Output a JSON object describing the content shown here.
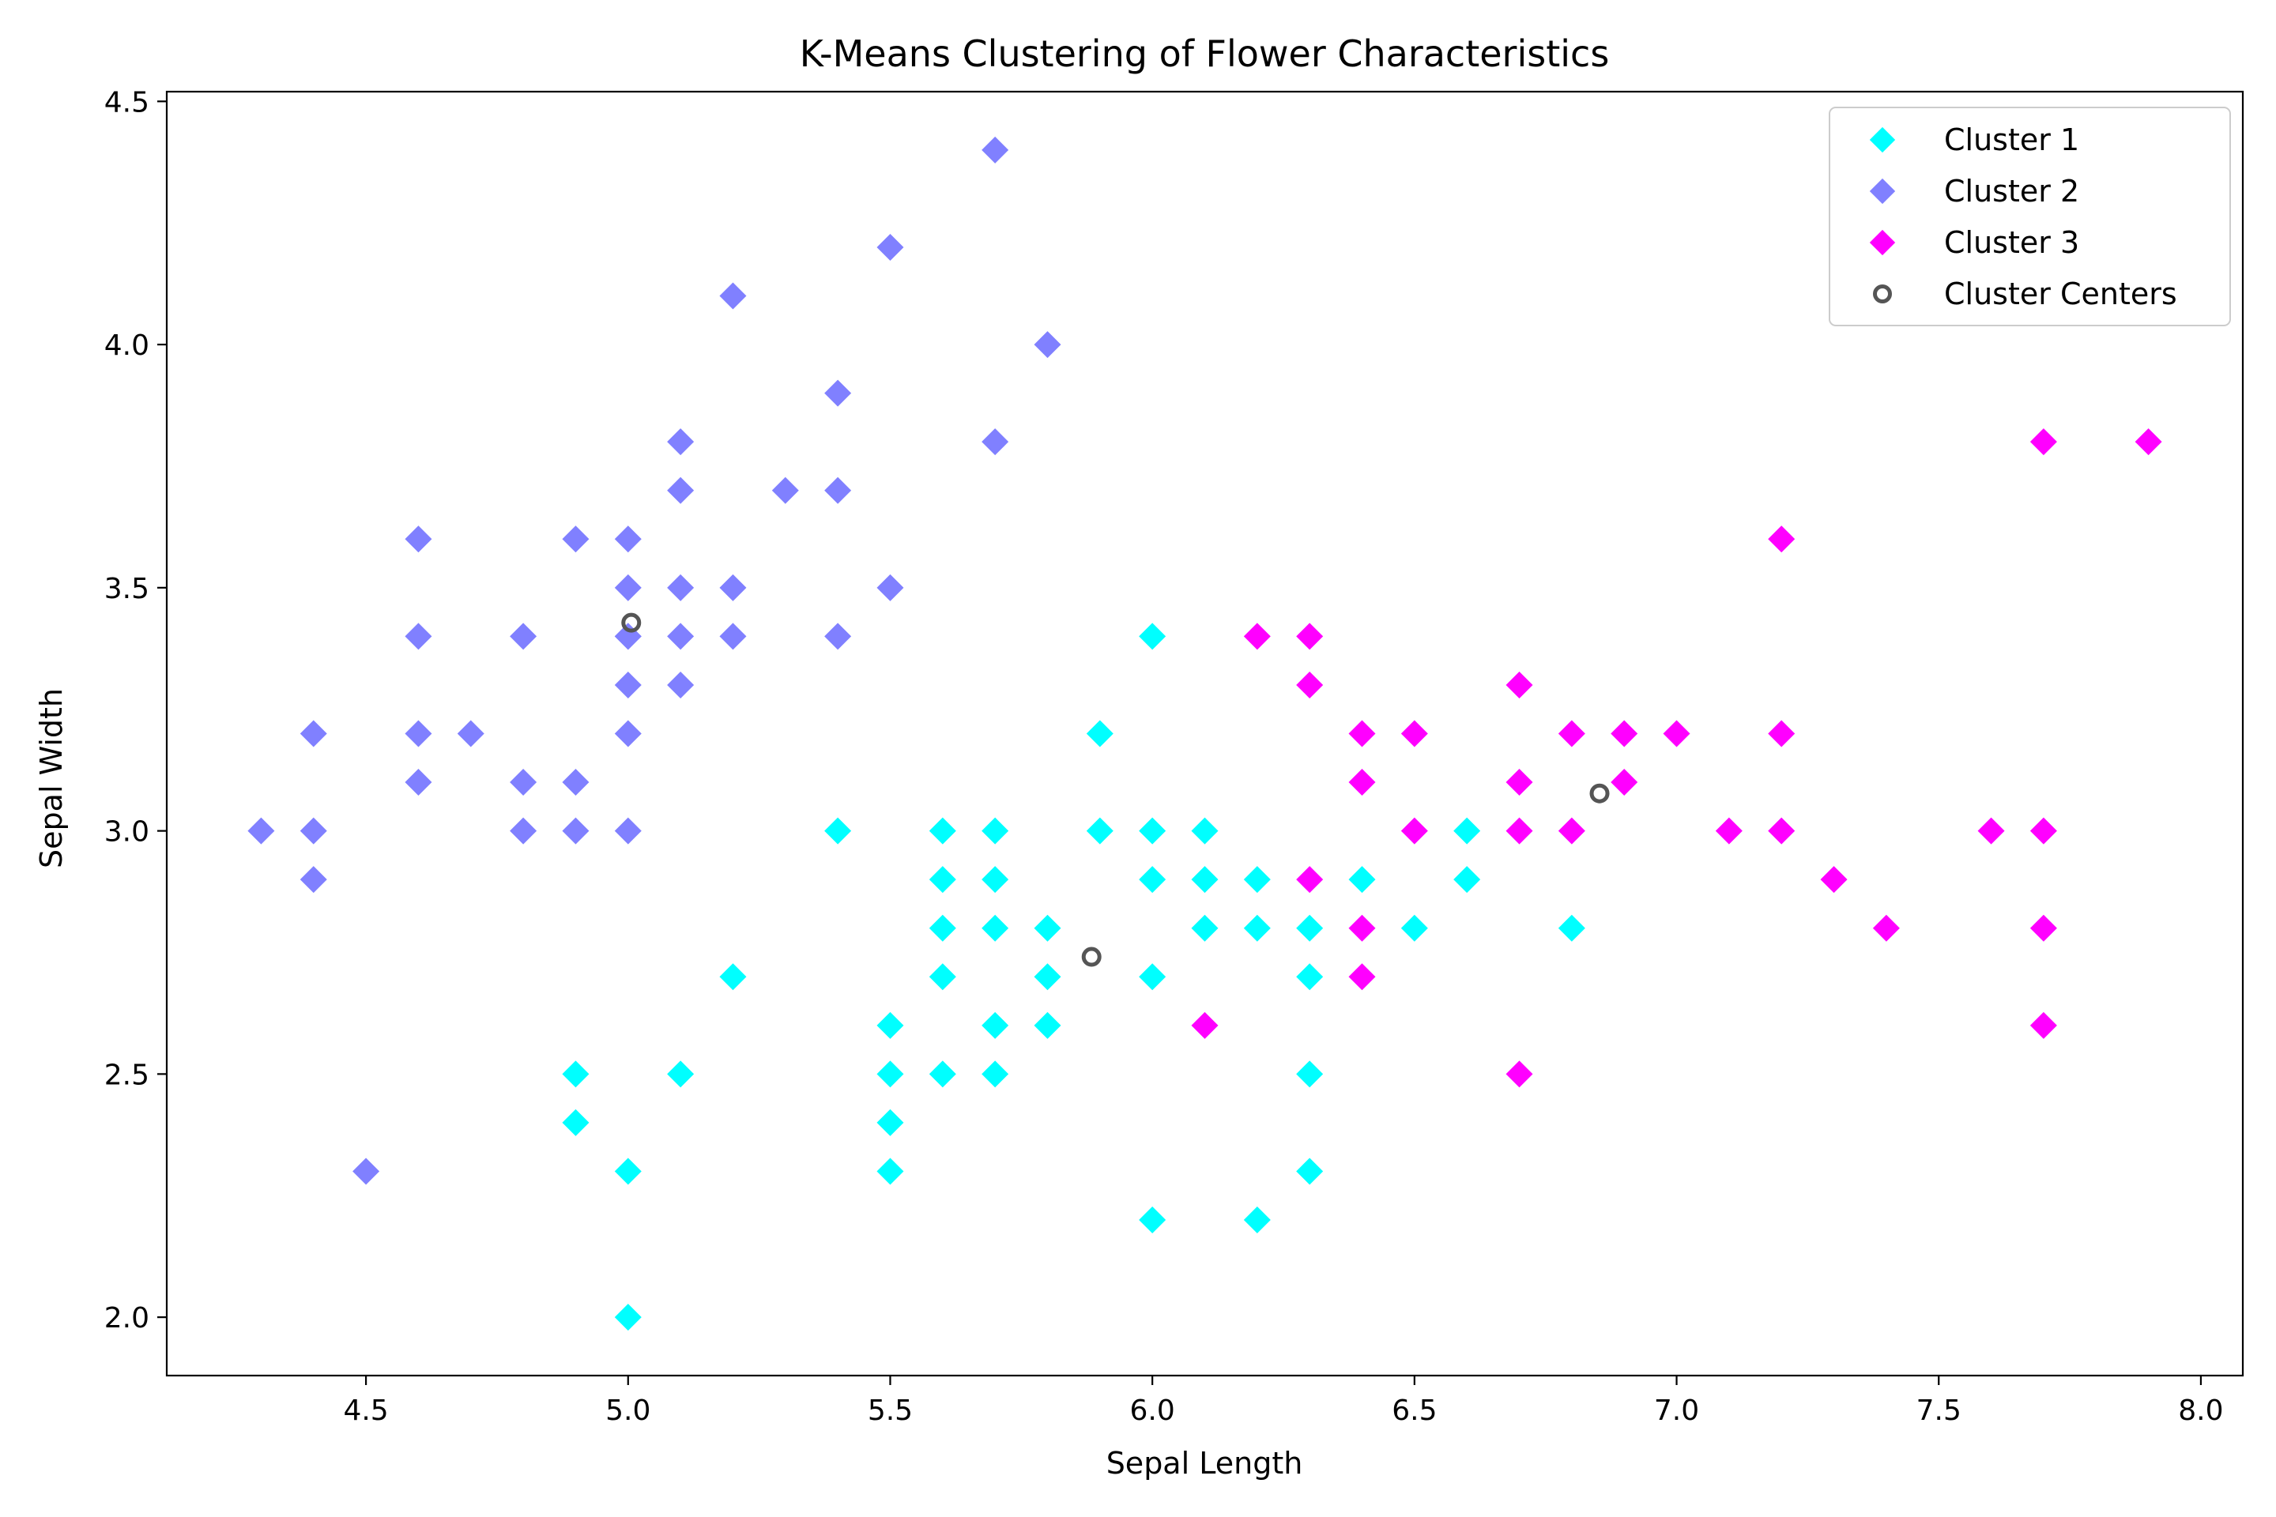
{
  "chart_data": {
    "type": "scatter",
    "title": "K-Means Clustering of Flower Characteristics",
    "xlabel": "Sepal Length",
    "ylabel": "Sepal Width",
    "xlim": [
      4.12,
      8.08
    ],
    "ylim": [
      1.88,
      4.52
    ],
    "xticks": [
      4.5,
      5.0,
      5.5,
      6.0,
      6.5,
      7.0,
      7.5,
      8.0
    ],
    "xtick_labels": [
      "4.5",
      "5.0",
      "5.5",
      "6.0",
      "6.5",
      "7.0",
      "7.5",
      "8.0"
    ],
    "yticks": [
      2.0,
      2.5,
      3.0,
      3.5,
      4.0,
      4.5
    ],
    "ytick_labels": [
      "2.0",
      "2.5",
      "3.0",
      "3.5",
      "4.0",
      "4.5"
    ],
    "grid": false,
    "legend_position": "top-right",
    "series": [
      {
        "name": "Cluster 1",
        "marker": "diamond",
        "color": "#00ffff",
        "x": [
          5.0,
          4.9,
          4.9,
          5.0,
          5.1,
          5.2,
          5.4,
          5.5,
          5.5,
          5.5,
          5.5,
          5.6,
          5.6,
          5.6,
          5.6,
          5.6,
          5.7,
          5.7,
          5.7,
          5.7,
          5.7,
          5.8,
          5.8,
          5.8,
          5.9,
          5.9,
          6.0,
          6.0,
          6.0,
          6.0,
          6.0,
          6.1,
          6.1,
          6.1,
          6.2,
          6.2,
          6.2,
          6.3,
          6.3,
          6.3,
          6.3,
          6.4,
          6.5,
          6.6,
          6.6,
          6.8
        ],
        "y": [
          2.0,
          2.4,
          2.5,
          2.3,
          2.5,
          2.7,
          3.0,
          2.3,
          2.4,
          2.5,
          2.6,
          2.5,
          2.7,
          2.8,
          2.9,
          3.0,
          2.5,
          2.6,
          2.8,
          2.9,
          3.0,
          2.6,
          2.7,
          2.8,
          3.0,
          3.2,
          2.2,
          2.7,
          2.9,
          3.0,
          3.4,
          2.8,
          2.9,
          3.0,
          2.2,
          2.8,
          2.9,
          2.3,
          2.5,
          2.7,
          2.8,
          2.9,
          2.8,
          2.9,
          3.0,
          2.8
        ]
      },
      {
        "name": "Cluster 2",
        "marker": "diamond",
        "color": "#8080ff",
        "x": [
          4.3,
          4.4,
          4.4,
          4.4,
          4.5,
          4.6,
          4.6,
          4.6,
          4.6,
          4.7,
          4.8,
          4.8,
          4.8,
          4.9,
          4.9,
          4.9,
          5.0,
          5.0,
          5.0,
          5.0,
          5.0,
          5.0,
          5.0,
          5.1,
          5.1,
          5.1,
          5.1,
          5.1,
          5.2,
          5.2,
          5.2,
          5.3,
          5.4,
          5.4,
          5.4,
          5.5,
          5.5,
          5.7,
          5.7,
          5.8
        ],
        "y": [
          3.0,
          2.9,
          3.0,
          3.2,
          2.3,
          3.1,
          3.2,
          3.4,
          3.6,
          3.2,
          3.0,
          3.1,
          3.4,
          3.0,
          3.1,
          3.6,
          3.0,
          3.2,
          3.3,
          3.4,
          3.5,
          3.6,
          3.4,
          3.3,
          3.4,
          3.5,
          3.7,
          3.8,
          3.4,
          3.5,
          4.1,
          3.7,
          3.4,
          3.7,
          3.9,
          3.5,
          4.2,
          3.8,
          4.4,
          4.0
        ]
      },
      {
        "name": "Cluster 3",
        "marker": "diamond",
        "color": "#ff00ff",
        "x": [
          6.1,
          6.2,
          6.3,
          6.3,
          6.3,
          6.4,
          6.4,
          6.4,
          6.4,
          6.5,
          6.5,
          6.7,
          6.7,
          6.7,
          6.7,
          6.8,
          6.8,
          6.9,
          6.9,
          7.0,
          7.1,
          7.2,
          7.2,
          7.2,
          7.3,
          7.4,
          7.6,
          7.7,
          7.7,
          7.7,
          7.7,
          7.9
        ],
        "y": [
          2.6,
          3.4,
          2.9,
          3.3,
          3.4,
          2.7,
          2.8,
          3.1,
          3.2,
          3.0,
          3.2,
          2.5,
          3.0,
          3.1,
          3.3,
          3.0,
          3.2,
          3.1,
          3.2,
          3.2,
          3.0,
          3.0,
          3.2,
          3.6,
          2.9,
          2.8,
          3.0,
          2.6,
          2.8,
          3.0,
          3.8,
          3.8
        ]
      },
      {
        "name": "Cluster Centers",
        "marker": "circle",
        "color": "#555555",
        "x": [
          5.006,
          5.884,
          6.853
        ],
        "y": [
          3.428,
          2.741,
          3.077
        ]
      }
    ]
  }
}
